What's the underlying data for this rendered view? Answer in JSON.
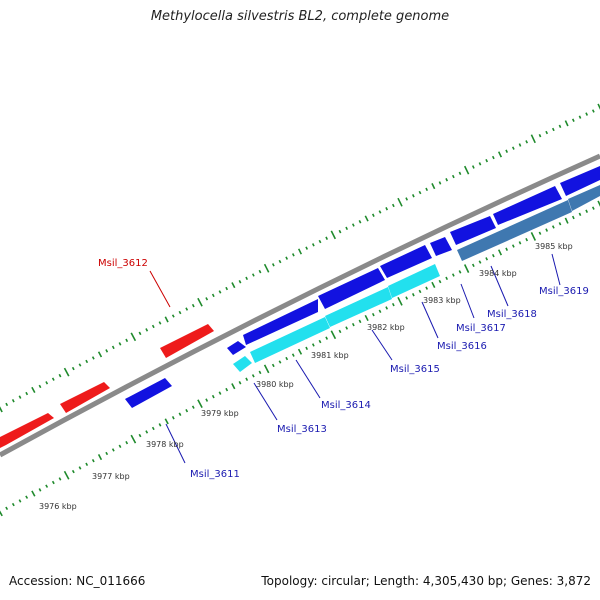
{
  "title": "Methylocella silvestris BL2, complete genome",
  "footer": {
    "accession": "Accession: NC_011666",
    "summary": "Topology: circular; Length: 4,305,430 bp; Genes: 3,872"
  },
  "colors": {
    "backbone": "#8a8a8a",
    "tick": "#1f8a2c",
    "red_gene": "#ee1b1b",
    "blue_gene": "#1212e0",
    "cyan_gene": "#22e0ee",
    "steel_gene": "#3f78b0",
    "red_label": "#cc0000",
    "blue_label": "#1a1ab0"
  },
  "scale_labels": [
    "3976 kbp",
    "3977 kbp",
    "3978 kbp",
    "3979 kbp",
    "3980 kbp",
    "3981 kbp",
    "3982 kbp",
    "3983 kbp",
    "3984 kbp",
    "3985 kbp"
  ],
  "gene_labels": [
    "Msil_3612",
    "Msil_3611",
    "Msil_3613",
    "Msil_3614",
    "Msil_3615",
    "Msil_3616",
    "Msil_3617",
    "Msil_3618",
    "Msil_3619"
  ]
}
